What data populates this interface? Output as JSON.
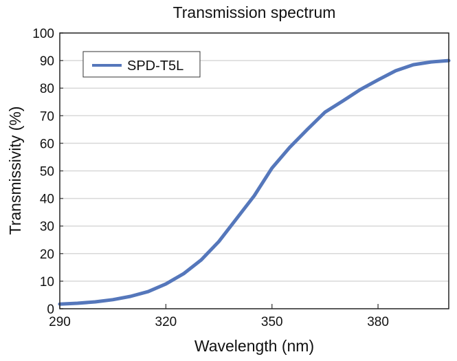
{
  "chart_data": {
    "type": "line",
    "title": "Transmission spectrum",
    "xlabel": "Wavelength (nm)",
    "ylabel": "Transmissivity (%)",
    "xlim": [
      290,
      400
    ],
    "ylim": [
      0,
      100
    ],
    "xticks": [
      290,
      320,
      350,
      380
    ],
    "yticks": [
      0,
      10,
      20,
      30,
      40,
      50,
      60,
      70,
      80,
      90,
      100
    ],
    "grid": "horizontal",
    "legend_position": "top-left",
    "series": [
      {
        "name": "SPD-T5L",
        "color": "#5577bb",
        "x": [
          290,
          295,
          300,
          305,
          310,
          315,
          320,
          325,
          330,
          335,
          340,
          345,
          350,
          355,
          360,
          365,
          370,
          375,
          380,
          385,
          390,
          395,
          400
        ],
        "y": [
          1.7,
          2.0,
          2.5,
          3.3,
          4.5,
          6.2,
          9.0,
          12.7,
          17.7,
          24.4,
          32.7,
          41.0,
          51.0,
          58.5,
          65.0,
          71.3,
          75.3,
          79.5,
          83.0,
          86.3,
          88.5,
          89.5,
          90.0
        ]
      }
    ]
  }
}
